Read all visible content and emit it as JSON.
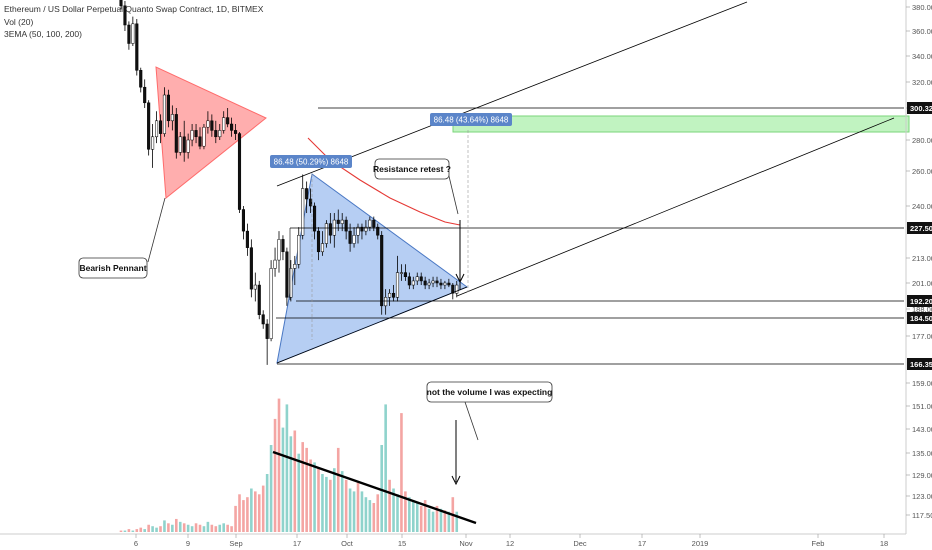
{
  "legend": {
    "title": "Ethereum / US Dollar Perpetual Quanto Swap Contract, 1D, BITMEX",
    "vol": "Vol (20)",
    "ema": "3EMA (50, 100, 200)"
  },
  "colors": {
    "up": "#26a69a",
    "down": "#ef5350",
    "vol_up": "#8fd3cc",
    "vol_down": "#f4a5a3",
    "pennant": "#ff6b6b",
    "triangle": "#8fb4ec",
    "target_zone": "#a6eea6",
    "ema": "#e53935",
    "label_blue": "#5b85c9"
  },
  "chart_data": {
    "type": "candlestick",
    "symbol": "ETHUSD",
    "timeframe": "1D",
    "ylim": [
      112,
      385
    ],
    "price_axis_ticks": [
      "380.00",
      "360.00",
      "340.00",
      "320.00",
      "300.00",
      "280.00",
      "260.00",
      "240.00",
      "227.50",
      "213.00",
      "201.00",
      "192.20",
      "188.00",
      "184.50",
      "177.00",
      "166.35",
      "159.00",
      "151.00",
      "143.00",
      "135.00",
      "129.00",
      "123.00",
      "117.50"
    ],
    "highlighted_levels": [
      "300.32",
      "227.50",
      "192.20",
      "184.50",
      "166.35"
    ],
    "x_ticks": [
      "6",
      "9",
      "Sep",
      "17",
      "Oct",
      "15",
      "Nov",
      "12",
      "Dec",
      "17",
      "2019",
      "Feb",
      "18"
    ],
    "candles": [
      {
        "date": "Aug 6",
        "o": 408,
        "h": 412,
        "l": 378,
        "c": 381
      },
      {
        "date": "Aug 7",
        "o": 381,
        "h": 385,
        "l": 360,
        "c": 365
      },
      {
        "date": "Aug 8",
        "o": 365,
        "h": 368,
        "l": 345,
        "c": 350
      },
      {
        "date": "Aug 9",
        "o": 350,
        "h": 372,
        "l": 348,
        "c": 366
      },
      {
        "date": "Aug 10",
        "o": 366,
        "h": 370,
        "l": 325,
        "c": 329
      },
      {
        "date": "Aug 11",
        "o": 329,
        "h": 331,
        "l": 312,
        "c": 316
      },
      {
        "date": "Aug 12",
        "o": 316,
        "h": 322,
        "l": 300,
        "c": 304
      },
      {
        "date": "Aug 13",
        "o": 304,
        "h": 306,
        "l": 270,
        "c": 274
      },
      {
        "date": "Aug 14",
        "o": 274,
        "h": 290,
        "l": 262,
        "c": 282
      },
      {
        "date": "Aug 15",
        "o": 282,
        "h": 298,
        "l": 278,
        "c": 292
      },
      {
        "date": "Aug 16",
        "o": 292,
        "h": 296,
        "l": 278,
        "c": 284
      },
      {
        "date": "Aug 17",
        "o": 284,
        "h": 316,
        "l": 282,
        "c": 310
      },
      {
        "date": "Aug 18",
        "o": 310,
        "h": 314,
        "l": 288,
        "c": 292
      },
      {
        "date": "Aug 19",
        "o": 292,
        "h": 302,
        "l": 286,
        "c": 296
      },
      {
        "date": "Aug 20",
        "o": 296,
        "h": 300,
        "l": 268,
        "c": 272
      },
      {
        "date": "Aug 21",
        "o": 272,
        "h": 285,
        "l": 270,
        "c": 282
      },
      {
        "date": "Aug 22",
        "o": 282,
        "h": 292,
        "l": 266,
        "c": 272
      },
      {
        "date": "Aug 23",
        "o": 272,
        "h": 284,
        "l": 268,
        "c": 280
      },
      {
        "date": "Aug 24",
        "o": 280,
        "h": 290,
        "l": 276,
        "c": 286
      },
      {
        "date": "Aug 25",
        "o": 286,
        "h": 290,
        "l": 278,
        "c": 282
      },
      {
        "date": "Aug 26",
        "o": 282,
        "h": 288,
        "l": 274,
        "c": 276
      },
      {
        "date": "Aug 27",
        "o": 276,
        "h": 290,
        "l": 274,
        "c": 288
      },
      {
        "date": "Aug 28",
        "o": 288,
        "h": 298,
        "l": 284,
        "c": 292
      },
      {
        "date": "Aug 29",
        "o": 292,
        "h": 296,
        "l": 282,
        "c": 286
      },
      {
        "date": "Aug 30",
        "o": 286,
        "h": 292,
        "l": 278,
        "c": 282
      },
      {
        "date": "Aug 31",
        "o": 282,
        "h": 290,
        "l": 280,
        "c": 286
      },
      {
        "date": "Sep 1",
        "o": 286,
        "h": 298,
        "l": 284,
        "c": 294
      },
      {
        "date": "Sep 2",
        "o": 294,
        "h": 300,
        "l": 288,
        "c": 290
      },
      {
        "date": "Sep 3",
        "o": 290,
        "h": 294,
        "l": 282,
        "c": 286
      },
      {
        "date": "Sep 4",
        "o": 286,
        "h": 290,
        "l": 280,
        "c": 284
      },
      {
        "date": "Sep 5",
        "o": 284,
        "h": 285,
        "l": 236,
        "c": 238
      },
      {
        "date": "Sep 6",
        "o": 238,
        "h": 240,
        "l": 222,
        "c": 226
      },
      {
        "date": "Sep 7",
        "o": 226,
        "h": 230,
        "l": 214,
        "c": 218
      },
      {
        "date": "Sep 8",
        "o": 218,
        "h": 222,
        "l": 194,
        "c": 198
      },
      {
        "date": "Sep 9",
        "o": 198,
        "h": 206,
        "l": 192,
        "c": 200
      },
      {
        "date": "Sep 10",
        "o": 200,
        "h": 202,
        "l": 184,
        "c": 186
      },
      {
        "date": "Sep 11",
        "o": 186,
        "h": 188,
        "l": 180,
        "c": 182
      },
      {
        "date": "Sep 12",
        "o": 182,
        "h": 184,
        "l": 166,
        "c": 176
      },
      {
        "date": "Sep 13",
        "o": 176,
        "h": 212,
        "l": 175,
        "c": 208
      },
      {
        "date": "Sep 14",
        "o": 208,
        "h": 218,
        "l": 204,
        "c": 212
      },
      {
        "date": "Sep 15",
        "o": 212,
        "h": 226,
        "l": 206,
        "c": 222
      },
      {
        "date": "Sep 16",
        "o": 222,
        "h": 224,
        "l": 212,
        "c": 216
      },
      {
        "date": "Sep 17",
        "o": 216,
        "h": 218,
        "l": 190,
        "c": 194
      },
      {
        "date": "Sep 18",
        "o": 194,
        "h": 212,
        "l": 192,
        "c": 208
      },
      {
        "date": "Sep 19",
        "o": 208,
        "h": 214,
        "l": 200,
        "c": 210
      },
      {
        "date": "Sep 20",
        "o": 210,
        "h": 228,
        "l": 208,
        "c": 224
      },
      {
        "date": "Sep 21",
        "o": 224,
        "h": 258,
        "l": 222,
        "c": 250
      },
      {
        "date": "Sep 22",
        "o": 250,
        "h": 254,
        "l": 236,
        "c": 244
      },
      {
        "date": "Sep 23",
        "o": 244,
        "h": 250,
        "l": 236,
        "c": 240
      },
      {
        "date": "Sep 24",
        "o": 240,
        "h": 242,
        "l": 222,
        "c": 226
      },
      {
        "date": "Sep 25",
        "o": 226,
        "h": 228,
        "l": 212,
        "c": 216
      },
      {
        "date": "Sep 26",
        "o": 216,
        "h": 226,
        "l": 214,
        "c": 220
      },
      {
        "date": "Sep 27",
        "o": 220,
        "h": 232,
        "l": 218,
        "c": 230
      },
      {
        "date": "Sep 28",
        "o": 230,
        "h": 236,
        "l": 220,
        "c": 224
      },
      {
        "date": "Sep 29",
        "o": 224,
        "h": 236,
        "l": 218,
        "c": 232
      },
      {
        "date": "Sep 30",
        "o": 232,
        "h": 238,
        "l": 226,
        "c": 230
      },
      {
        "date": "Oct 1",
        "o": 230,
        "h": 236,
        "l": 226,
        "c": 232
      },
      {
        "date": "Oct 2",
        "o": 232,
        "h": 234,
        "l": 222,
        "c": 226
      },
      {
        "date": "Oct 3",
        "o": 226,
        "h": 230,
        "l": 216,
        "c": 220
      },
      {
        "date": "Oct 4",
        "o": 220,
        "h": 228,
        "l": 218,
        "c": 224
      },
      {
        "date": "Oct 5",
        "o": 224,
        "h": 230,
        "l": 220,
        "c": 228
      },
      {
        "date": "Oct 6",
        "o": 228,
        "h": 230,
        "l": 222,
        "c": 226
      },
      {
        "date": "Oct 7",
        "o": 226,
        "h": 232,
        "l": 224,
        "c": 228
      },
      {
        "date": "Oct 8",
        "o": 228,
        "h": 234,
        "l": 226,
        "c": 232
      },
      {
        "date": "Oct 9",
        "o": 232,
        "h": 234,
        "l": 226,
        "c": 228
      },
      {
        "date": "Oct 10",
        "o": 228,
        "h": 230,
        "l": 222,
        "c": 224
      },
      {
        "date": "Oct 11",
        "o": 224,
        "h": 226,
        "l": 186,
        "c": 190
      },
      {
        "date": "Oct 12",
        "o": 190,
        "h": 198,
        "l": 186,
        "c": 194
      },
      {
        "date": "Oct 13",
        "o": 194,
        "h": 198,
        "l": 190,
        "c": 196
      },
      {
        "date": "Oct 14",
        "o": 196,
        "h": 200,
        "l": 192,
        "c": 194
      },
      {
        "date": "Oct 15",
        "o": 194,
        "h": 214,
        "l": 192,
        "c": 206
      },
      {
        "date": "Oct 16",
        "o": 206,
        "h": 210,
        "l": 202,
        "c": 206
      },
      {
        "date": "Oct 17",
        "o": 206,
        "h": 210,
        "l": 202,
        "c": 204
      },
      {
        "date": "Oct 18",
        "o": 204,
        "h": 206,
        "l": 198,
        "c": 200
      },
      {
        "date": "Oct 19",
        "o": 200,
        "h": 204,
        "l": 198,
        "c": 202
      },
      {
        "date": "Oct 20",
        "o": 202,
        "h": 206,
        "l": 200,
        "c": 204
      },
      {
        "date": "Oct 21",
        "o": 204,
        "h": 206,
        "l": 200,
        "c": 202
      },
      {
        "date": "Oct 22",
        "o": 202,
        "h": 204,
        "l": 198,
        "c": 200
      },
      {
        "date": "Oct 23",
        "o": 200,
        "h": 203,
        "l": 198,
        "c": 201
      },
      {
        "date": "Oct 24",
        "o": 201,
        "h": 204,
        "l": 199,
        "c": 202
      },
      {
        "date": "Oct 25",
        "o": 202,
        "h": 204,
        "l": 199,
        "c": 201
      },
      {
        "date": "Oct 26",
        "o": 201,
        "h": 203,
        "l": 198,
        "c": 200
      },
      {
        "date": "Oct 27",
        "o": 200,
        "h": 202,
        "l": 198,
        "c": 201
      },
      {
        "date": "Oct 28",
        "o": 201,
        "h": 203,
        "l": 199,
        "c": 200
      },
      {
        "date": "Oct 29",
        "o": 200,
        "h": 201,
        "l": 193,
        "c": 196
      },
      {
        "date": "Oct 30",
        "o": 196,
        "h": 202,
        "l": 194,
        "c": 200
      }
    ],
    "volume": [
      1,
      1,
      2,
      1,
      2,
      3,
      2,
      5,
      4,
      3,
      4,
      8,
      6,
      5,
      9,
      7,
      6,
      5,
      4,
      6,
      5,
      4,
      7,
      5,
      4,
      5,
      6,
      5,
      4,
      18,
      26,
      22,
      24,
      30,
      28,
      26,
      32,
      40,
      60,
      78,
      92,
      72,
      88,
      66,
      70,
      54,
      62,
      58,
      50,
      48,
      44,
      40,
      38,
      36,
      44,
      58,
      42,
      36,
      30,
      28,
      34,
      28,
      24,
      22,
      20,
      26,
      60,
      88,
      36,
      30,
      26,
      82,
      28,
      24,
      22,
      20,
      18,
      22,
      16,
      14,
      18,
      16,
      15,
      14,
      24,
      14
    ],
    "volume_up": [
      false,
      true,
      false,
      true,
      false,
      false,
      true,
      false,
      true,
      true,
      false,
      true,
      false,
      true,
      false,
      true,
      false,
      true,
      true,
      false,
      false,
      true,
      true,
      false,
      false,
      true,
      true,
      false,
      false,
      false,
      false,
      false,
      false,
      true,
      false,
      false,
      false,
      true,
      true,
      false,
      false,
      true,
      true,
      true,
      false,
      true,
      false,
      false,
      false,
      true,
      false,
      true,
      true,
      false,
      true,
      false,
      true,
      false,
      true,
      true,
      false,
      true,
      true,
      true,
      false,
      false,
      true,
      true,
      false,
      true,
      true,
      false,
      false,
      true,
      true,
      true,
      false,
      false,
      true,
      true,
      false,
      true,
      false,
      true,
      false,
      true
    ],
    "annotations": [
      {
        "text": "Bearish Pennant"
      },
      {
        "text": "Resistance retest ?"
      },
      {
        "text": "not the volume I was expecting"
      },
      {
        "text": "86.48 (50.29%) 8648"
      },
      {
        "text": "86.48 (43.64%) 8648"
      }
    ],
    "ema_series": [
      [
        260,
        228
      ],
      [
        270,
        218
      ],
      [
        280,
        206
      ],
      [
        290,
        200
      ],
      [
        300,
        198
      ],
      [
        308,
        197
      ]
    ],
    "grid": false,
    "legend_position": "top-left"
  }
}
